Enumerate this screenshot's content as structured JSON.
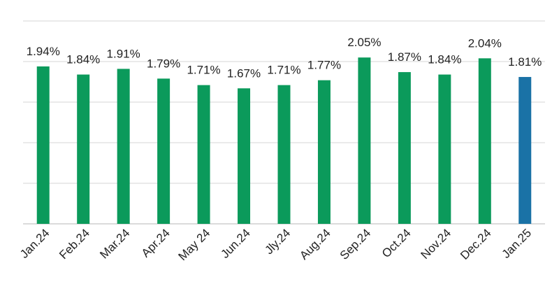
{
  "chart_data": {
    "type": "bar",
    "categories": [
      "Jan.24",
      "Feb.24",
      "Mar.24",
      "Apr.24",
      "May 24",
      "Jun.24",
      "Jly.24",
      "Aug.24",
      "Sep.24",
      "Oct.24",
      "Nov.24",
      "Dec.24",
      "Jan.25"
    ],
    "values": [
      1.94,
      1.84,
      1.91,
      1.79,
      1.71,
      1.67,
      1.71,
      1.77,
      2.05,
      1.87,
      1.84,
      2.04,
      1.81
    ],
    "data_labels": [
      "1.94%",
      "1.84%",
      "1.91%",
      "1.79%",
      "1.71%",
      "1.67%",
      "1.71%",
      "1.77%",
      "2.05%",
      "1.87%",
      "1.84%",
      "2.04%",
      "1.81%"
    ],
    "ylim": [
      0,
      2.5
    ],
    "gridlines": [
      0,
      0.5,
      1.0,
      1.5,
      2.0,
      2.5
    ],
    "grid": true,
    "legend": "none",
    "colors": {
      "default_bar": "#0b9a5b",
      "highlight_bar": "#1a72a6"
    },
    "highlight_index": 12
  }
}
